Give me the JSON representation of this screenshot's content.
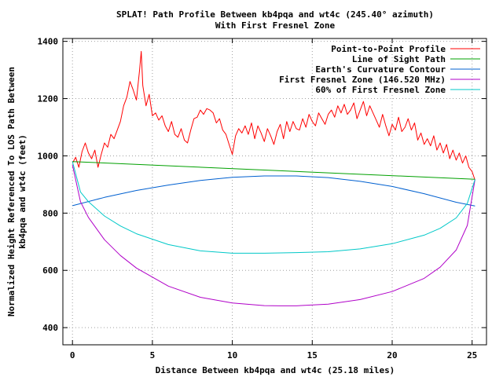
{
  "chart_data": {
    "type": "line",
    "title": "SPLAT! Path Profile Between kb4pqa and wt4c (245.40° azimuth)",
    "subtitle": "With First Fresnel Zone",
    "xlabel": "Distance Between kb4pqa and wt4c (25.18 miles)",
    "ylabel_line1": "Normalized Height Referenced To LOS Path Between",
    "ylabel_line2": "kb4pqa and wt4c (feet)",
    "xlim": [
      -0.6,
      25.9
    ],
    "ylim": [
      340,
      1410
    ],
    "x_ticks": [
      0,
      5,
      10,
      15,
      20,
      25
    ],
    "y_ticks": [
      400,
      600,
      800,
      1000,
      1200,
      1400
    ],
    "grid": true,
    "legend_position": "top-right",
    "series": [
      {
        "name": "Point-to-Point Profile",
        "color": "#ff0000",
        "x": [
          0,
          0.2,
          0.4,
          0.6,
          0.8,
          1.0,
          1.2,
          1.4,
          1.6,
          1.8,
          2.0,
          2.2,
          2.4,
          2.6,
          2.8,
          3.0,
          3.2,
          3.4,
          3.6,
          3.8,
          4.0,
          4.2,
          4.3,
          4.4,
          4.6,
          4.8,
          5.0,
          5.2,
          5.4,
          5.6,
          5.8,
          6.0,
          6.2,
          6.4,
          6.6,
          6.8,
          7.0,
          7.2,
          7.4,
          7.6,
          7.8,
          8.0,
          8.2,
          8.4,
          8.6,
          8.8,
          9.0,
          9.2,
          9.4,
          9.6,
          9.8,
          10.0,
          10.2,
          10.4,
          10.6,
          10.8,
          11.0,
          11.2,
          11.4,
          11.6,
          11.8,
          12.0,
          12.2,
          12.4,
          12.6,
          12.8,
          13.0,
          13.2,
          13.4,
          13.6,
          13.8,
          14.0,
          14.2,
          14.4,
          14.6,
          14.8,
          15.0,
          15.2,
          15.4,
          15.6,
          15.8,
          16.0,
          16.2,
          16.4,
          16.6,
          16.8,
          17.0,
          17.2,
          17.4,
          17.6,
          17.8,
          18.0,
          18.2,
          18.4,
          18.6,
          18.8,
          19.0,
          19.2,
          19.4,
          19.6,
          19.8,
          20.0,
          20.2,
          20.4,
          20.6,
          20.8,
          21.0,
          21.2,
          21.4,
          21.6,
          21.8,
          22.0,
          22.2,
          22.4,
          22.6,
          22.8,
          23.0,
          23.2,
          23.4,
          23.6,
          23.8,
          24.0,
          24.2,
          24.4,
          24.6,
          24.8,
          25.0,
          25.18
        ],
        "values": [
          975,
          995,
          960,
          1015,
          1045,
          1010,
          990,
          1020,
          960,
          1005,
          1045,
          1030,
          1075,
          1060,
          1090,
          1120,
          1175,
          1205,
          1260,
          1230,
          1195,
          1300,
          1365,
          1245,
          1175,
          1215,
          1140,
          1150,
          1125,
          1140,
          1105,
          1085,
          1120,
          1075,
          1065,
          1095,
          1055,
          1045,
          1090,
          1130,
          1135,
          1160,
          1145,
          1165,
          1160,
          1150,
          1115,
          1130,
          1090,
          1075,
          1040,
          1005,
          1070,
          1095,
          1080,
          1105,
          1075,
          1115,
          1060,
          1105,
          1080,
          1050,
          1095,
          1070,
          1040,
          1085,
          1110,
          1060,
          1120,
          1085,
          1120,
          1095,
          1090,
          1130,
          1100,
          1145,
          1120,
          1105,
          1150,
          1130,
          1110,
          1145,
          1160,
          1135,
          1175,
          1150,
          1180,
          1145,
          1160,
          1185,
          1130,
          1160,
          1190,
          1140,
          1175,
          1150,
          1125,
          1100,
          1145,
          1105,
          1070,
          1110,
          1090,
          1135,
          1085,
          1100,
          1130,
          1090,
          1115,
          1055,
          1080,
          1040,
          1060,
          1035,
          1070,
          1020,
          1045,
          1010,
          1040,
          990,
          1020,
          985,
          1010,
          975,
          1000,
          960,
          945,
          915
        ]
      },
      {
        "name": "Line of Sight Path",
        "color": "#00a000",
        "x": [
          0,
          25.18
        ],
        "values": [
          980,
          918
        ]
      },
      {
        "name": "Earth's Curvature Contour",
        "color": "#0060d0",
        "x": [
          0,
          2,
          4,
          6,
          8,
          10,
          12,
          14,
          16,
          18,
          20,
          22,
          24,
          25.18
        ],
        "values": [
          826,
          855,
          879,
          898,
          914,
          925,
          930,
          930,
          924,
          911,
          893,
          868,
          838,
          825
        ]
      },
      {
        "name": "First Fresnel Zone (146.520 MHz)",
        "color": "#b000c8",
        "x": [
          0,
          0.5,
          1,
          2,
          3,
          4,
          6,
          8,
          10,
          12,
          13,
          14,
          16,
          18,
          20,
          22,
          23,
          24,
          24.7,
          25.18
        ],
        "values": [
          968,
          840,
          785,
          707,
          652,
          608,
          545,
          506,
          486,
          477,
          476,
          476,
          482,
          498,
          526,
          572,
          611,
          671,
          757,
          918
        ]
      },
      {
        "name": "60% of First Fresnel Zone",
        "color": "#00c8c8",
        "x": [
          0,
          0.5,
          1,
          2,
          3,
          4,
          6,
          8,
          10,
          12,
          13,
          14,
          16,
          18,
          20,
          22,
          23,
          24,
          24.7,
          25.18
        ],
        "values": [
          980,
          874,
          840,
          790,
          755,
          728,
          690,
          668,
          660,
          660,
          661,
          662,
          665,
          675,
          693,
          723,
          747,
          783,
          834,
          918
        ]
      }
    ]
  }
}
